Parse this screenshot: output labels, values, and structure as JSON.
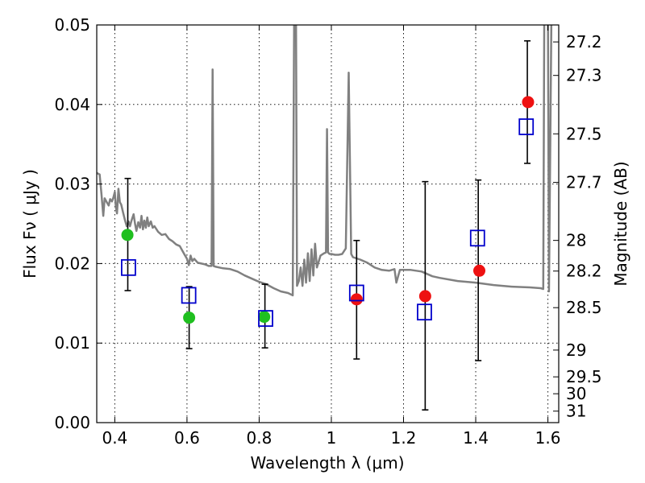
{
  "chart_data": {
    "type": "scatter",
    "title": "",
    "xlabel": "Wavelength  λ (μm)",
    "ylabel": "Flux  Fν  ( μJy )",
    "ylabel_right": "Magnitude (AB)",
    "xlim": [
      0.35,
      1.63
    ],
    "ylim": [
      0.0,
      0.05
    ],
    "grid": true,
    "x_ticks": [
      {
        "value": 0.4,
        "label": "0.4"
      },
      {
        "value": 0.6,
        "label": "0.6"
      },
      {
        "value": 0.8,
        "label": "0.8"
      },
      {
        "value": 1.0,
        "label": "1"
      },
      {
        "value": 1.2,
        "label": "1.2"
      },
      {
        "value": 1.4,
        "label": "1.4"
      },
      {
        "value": 1.6,
        "label": "1.6"
      }
    ],
    "y_ticks": [
      {
        "value": 0.0,
        "label": "0.00"
      },
      {
        "value": 0.01,
        "label": "0.01"
      },
      {
        "value": 0.02,
        "label": "0.02"
      },
      {
        "value": 0.03,
        "label": "0.03"
      },
      {
        "value": 0.04,
        "label": "0.04"
      },
      {
        "value": 0.05,
        "label": "0.05"
      }
    ],
    "right_ticks": [
      {
        "mag": 27.2,
        "label": "27.2"
      },
      {
        "mag": 27.3,
        "label": "27.3"
      },
      {
        "mag": 27.5,
        "label": "27.5"
      },
      {
        "mag": 27.7,
        "label": "27.7"
      },
      {
        "mag": 28.0,
        "label": "28"
      },
      {
        "mag": 28.2,
        "label": "28.2"
      },
      {
        "mag": 28.5,
        "label": "28.5"
      },
      {
        "mag": 29.0,
        "label": "29"
      },
      {
        "mag": 29.5,
        "label": "29.5"
      },
      {
        "mag": 30.0,
        "label": "30"
      },
      {
        "mag": 31.0,
        "label": "31"
      }
    ],
    "series": [
      {
        "style": "spectrum-line",
        "color": "#808080",
        "points": [
          [
            0.35,
            0.0314
          ],
          [
            0.358,
            0.0312
          ],
          [
            0.363,
            0.0288
          ],
          [
            0.368,
            0.026
          ],
          [
            0.372,
            0.0282
          ],
          [
            0.378,
            0.0277
          ],
          [
            0.383,
            0.0273
          ],
          [
            0.387,
            0.0281
          ],
          [
            0.392,
            0.0278
          ],
          [
            0.396,
            0.0283
          ],
          [
            0.4,
            0.029
          ],
          [
            0.403,
            0.0271
          ],
          [
            0.406,
            0.0263
          ],
          [
            0.41,
            0.0294
          ],
          [
            0.414,
            0.0277
          ],
          [
            0.418,
            0.0274
          ],
          [
            0.423,
            0.0264
          ],
          [
            0.428,
            0.0255
          ],
          [
            0.433,
            0.0247
          ],
          [
            0.438,
            0.0253
          ],
          [
            0.442,
            0.0247
          ],
          [
            0.447,
            0.0255
          ],
          [
            0.452,
            0.0262
          ],
          [
            0.456,
            0.025
          ],
          [
            0.46,
            0.0241
          ],
          [
            0.465,
            0.0252
          ],
          [
            0.47,
            0.0245
          ],
          [
            0.474,
            0.026
          ],
          [
            0.478,
            0.0243
          ],
          [
            0.482,
            0.0254
          ],
          [
            0.486,
            0.0245
          ],
          [
            0.49,
            0.0258
          ],
          [
            0.494,
            0.0247
          ],
          [
            0.5,
            0.0253
          ],
          [
            0.505,
            0.0245
          ],
          [
            0.51,
            0.0247
          ],
          [
            0.52,
            0.024
          ],
          [
            0.53,
            0.0236
          ],
          [
            0.54,
            0.0237
          ],
          [
            0.55,
            0.0231
          ],
          [
            0.56,
            0.0228
          ],
          [
            0.57,
            0.0224
          ],
          [
            0.58,
            0.0222
          ],
          [
            0.59,
            0.0214
          ],
          [
            0.6,
            0.0206
          ],
          [
            0.605,
            0.0198
          ],
          [
            0.61,
            0.021
          ],
          [
            0.615,
            0.0203
          ],
          [
            0.62,
            0.0206
          ],
          [
            0.63,
            0.0201
          ],
          [
            0.64,
            0.02
          ],
          [
            0.65,
            0.0199
          ],
          [
            0.66,
            0.0197
          ],
          [
            0.668,
            0.0197
          ],
          [
            0.671,
            0.0444
          ],
          [
            0.674,
            0.0197
          ],
          [
            0.68,
            0.0196
          ],
          [
            0.7,
            0.0194
          ],
          [
            0.72,
            0.0193
          ],
          [
            0.74,
            0.019
          ],
          [
            0.76,
            0.0185
          ],
          [
            0.78,
            0.0181
          ],
          [
            0.8,
            0.0177
          ],
          [
            0.82,
            0.0174
          ],
          [
            0.84,
            0.0169
          ],
          [
            0.86,
            0.0165
          ],
          [
            0.88,
            0.0163
          ],
          [
            0.893,
            0.016
          ],
          [
            0.897,
            0.052
          ],
          [
            0.902,
            0.052
          ],
          [
            0.905,
            0.0172
          ],
          [
            0.91,
            0.0178
          ],
          [
            0.915,
            0.0195
          ],
          [
            0.92,
            0.0172
          ],
          [
            0.925,
            0.0205
          ],
          [
            0.93,
            0.0176
          ],
          [
            0.935,
            0.0213
          ],
          [
            0.94,
            0.0178
          ],
          [
            0.945,
            0.0218
          ],
          [
            0.95,
            0.0185
          ],
          [
            0.955,
            0.0225
          ],
          [
            0.96,
            0.0195
          ],
          [
            0.97,
            0.021
          ],
          [
            0.98,
            0.0213
          ],
          [
            0.985,
            0.0214
          ],
          [
            0.988,
            0.0369
          ],
          [
            0.991,
            0.0214
          ],
          [
            0.995,
            0.0212
          ],
          [
            1.0,
            0.0212
          ],
          [
            1.01,
            0.0211
          ],
          [
            1.02,
            0.0211
          ],
          [
            1.03,
            0.0212
          ],
          [
            1.04,
            0.0219
          ],
          [
            1.048,
            0.044
          ],
          [
            1.055,
            0.0212
          ],
          [
            1.06,
            0.0208
          ],
          [
            1.08,
            0.0205
          ],
          [
            1.1,
            0.0201
          ],
          [
            1.12,
            0.0195
          ],
          [
            1.14,
            0.0192
          ],
          [
            1.16,
            0.0191
          ],
          [
            1.175,
            0.0193
          ],
          [
            1.18,
            0.0176
          ],
          [
            1.19,
            0.0192
          ],
          [
            1.22,
            0.0192
          ],
          [
            1.25,
            0.019
          ],
          [
            1.28,
            0.0184
          ],
          [
            1.3,
            0.0182
          ],
          [
            1.35,
            0.0178
          ],
          [
            1.4,
            0.0176
          ],
          [
            1.45,
            0.0173
          ],
          [
            1.5,
            0.0171
          ],
          [
            1.55,
            0.017
          ],
          [
            1.58,
            0.0169
          ],
          [
            1.587,
            0.0168
          ],
          [
            1.59,
            0.052
          ],
          [
            1.6,
            0.052
          ],
          [
            1.603,
            0.0165
          ],
          [
            1.61,
            0.052
          ],
          [
            1.63,
            0.052
          ]
        ]
      },
      {
        "style": "green-filled-circle",
        "color": "#1fbf1f",
        "points": [
          [
            0.435,
            0.0236
          ],
          [
            0.606,
            0.0132
          ],
          [
            0.814,
            0.0133
          ]
        ]
      },
      {
        "style": "red-filled-circle",
        "color": "#ee1111",
        "points": [
          [
            1.07,
            0.0155
          ],
          [
            1.26,
            0.0159
          ],
          [
            1.41,
            0.0191
          ],
          [
            1.545,
            0.0403
          ]
        ]
      },
      {
        "style": "blue-open-square",
        "color": "#0000cc",
        "points": [
          [
            0.438,
            0.0195
          ],
          [
            0.605,
            0.016
          ],
          [
            0.818,
            0.0131
          ],
          [
            1.07,
            0.0163
          ],
          [
            1.258,
            0.0139
          ],
          [
            1.405,
            0.0232
          ],
          [
            1.54,
            0.0372
          ]
        ]
      },
      {
        "style": "errorbars",
        "color": "#000000",
        "bars": [
          {
            "x": 0.436,
            "low": 0.0166,
            "high": 0.0307
          },
          {
            "x": 0.606,
            "low": 0.0093,
            "high": 0.0171
          },
          {
            "x": 0.816,
            "low": 0.0094,
            "high": 0.0174
          },
          {
            "x": 1.07,
            "low": 0.008,
            "high": 0.0229
          },
          {
            "x": 1.26,
            "low": 0.0016,
            "high": 0.0303
          },
          {
            "x": 1.407,
            "low": 0.0078,
            "high": 0.0305
          },
          {
            "x": 1.543,
            "low": 0.0326,
            "high": 0.048
          }
        ]
      }
    ]
  }
}
